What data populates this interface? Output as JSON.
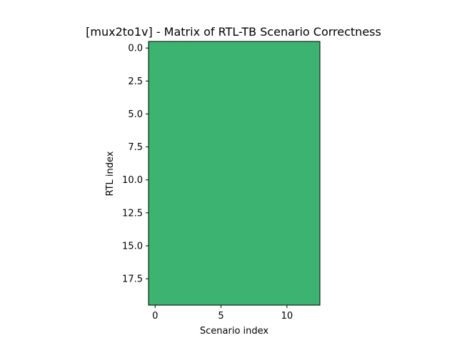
{
  "chart_data": {
    "type": "heatmap",
    "title": "[mux2to1v] - Matrix of RTL-TB Scenario Correctness",
    "xlabel": "Scenario index",
    "ylabel": "RTL index",
    "n_rows": 20,
    "n_cols": 13,
    "xlim": [
      -0.5,
      12.5
    ],
    "ylim": [
      19.5,
      -0.5
    ],
    "xticks": [
      0,
      5,
      10
    ],
    "xtick_labels": [
      "0",
      "5",
      "10"
    ],
    "yticks": [
      0,
      2.5,
      5,
      7.5,
      10,
      12.5,
      15,
      17.5
    ],
    "ytick_labels": [
      "0.0",
      "2.5",
      "5.0",
      "7.5",
      "10.0",
      "12.5",
      "15.0",
      "17.5"
    ],
    "cell_value": 1,
    "cell_color": "#3cb371",
    "grid": false,
    "legend": "none"
  }
}
